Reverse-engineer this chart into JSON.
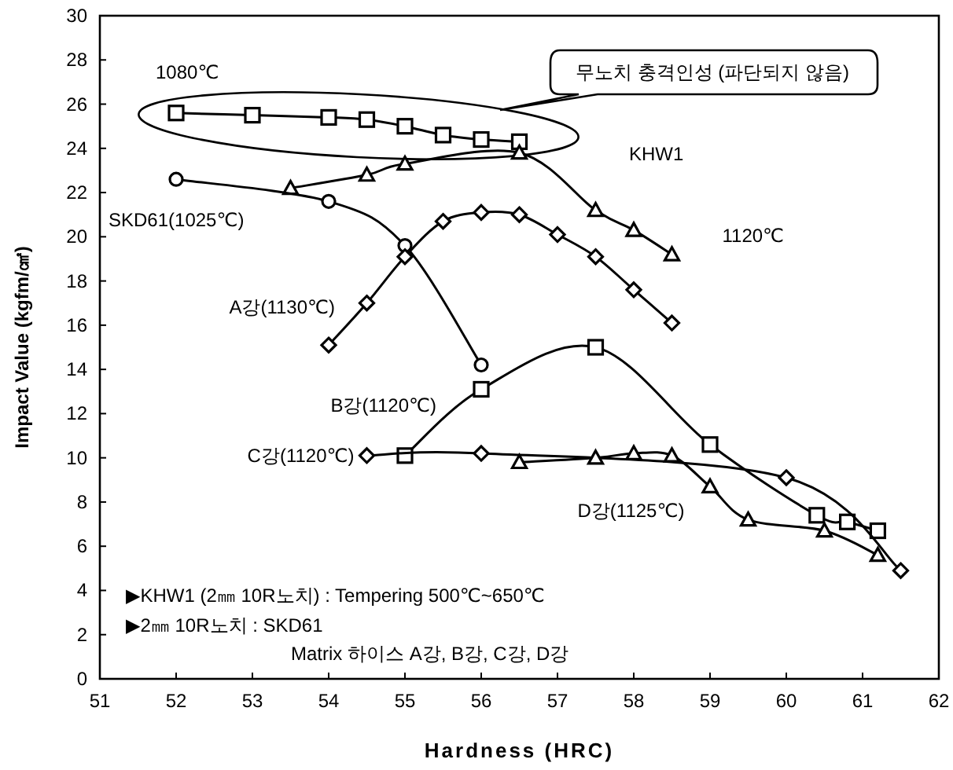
{
  "chart_data": {
    "type": "line",
    "xlabel": "Hardness (HRC)",
    "ylabel": "Impact Value (kgfm/㎠)",
    "xlim": [
      51,
      62
    ],
    "xticks": [
      51,
      52,
      53,
      54,
      55,
      56,
      57,
      58,
      59,
      60,
      61,
      62
    ],
    "ylim": [
      0,
      30
    ],
    "yticks": [
      0,
      2,
      4,
      6,
      8,
      10,
      12,
      14,
      16,
      18,
      20,
      22,
      24,
      26,
      28,
      30
    ],
    "grid": false,
    "series": [
      {
        "name": "1080℃",
        "color": "#000000",
        "marker": "square",
        "x": [
          52,
          53,
          54,
          54.5,
          55,
          55.5,
          56,
          56.5
        ],
        "values": [
          25.6,
          25.5,
          25.4,
          25.3,
          25.0,
          24.6,
          24.4,
          24.3
        ]
      },
      {
        "name": "1120℃",
        "color": "#000000",
        "marker": "triangle",
        "x": [
          53.5,
          54.5,
          55,
          56.5,
          57.5,
          58,
          58.5
        ],
        "values": [
          22.2,
          22.8,
          23.3,
          23.8,
          21.2,
          20.3,
          19.2
        ]
      },
      {
        "name": "SKD61(1025℃)",
        "color": "#000000",
        "marker": "circle",
        "x": [
          52,
          54,
          55,
          56
        ],
        "values": [
          22.6,
          21.6,
          19.6,
          14.2
        ]
      },
      {
        "name": "A강(1130℃)",
        "color": "#000000",
        "marker": "diamond",
        "x": [
          54,
          54.5,
          55,
          55.5,
          56,
          56.5,
          57,
          57.5,
          58,
          58.5
        ],
        "values": [
          15.1,
          17.0,
          19.1,
          20.7,
          21.1,
          21.0,
          20.1,
          19.1,
          17.6,
          16.1
        ]
      },
      {
        "name": "B강(1120℃)",
        "color": "#000000",
        "marker": "square",
        "x": [
          55,
          56,
          57.5,
          59,
          60.4,
          60.8,
          61.2
        ],
        "values": [
          10.1,
          13.1,
          15.0,
          10.6,
          7.4,
          7.1,
          6.7
        ]
      },
      {
        "name": "C강(1120℃)",
        "color": "#000000",
        "marker": "diamond",
        "x": [
          54.5,
          56,
          60,
          61.5
        ],
        "values": [
          10.1,
          10.2,
          9.1,
          4.9
        ]
      },
      {
        "name": "D강(1125℃)",
        "color": "#000000",
        "marker": "triangle",
        "x": [
          56.5,
          57.5,
          58,
          58.5,
          59,
          59.5,
          60.5,
          61.2
        ],
        "values": [
          9.8,
          10.0,
          10.2,
          10.1,
          8.7,
          7.2,
          6.7,
          5.6
        ]
      }
    ],
    "annotations": [
      "무노치 충격인성 (파단되지 않음)",
      "KHW1",
      "▶KHW1 (2㎜ 10R노치) : Tempering 500℃~650℃",
      "▶2㎜ 10R노치 : SKD61",
      "Matrix 하이스 A강, B강, C강, D강"
    ]
  }
}
